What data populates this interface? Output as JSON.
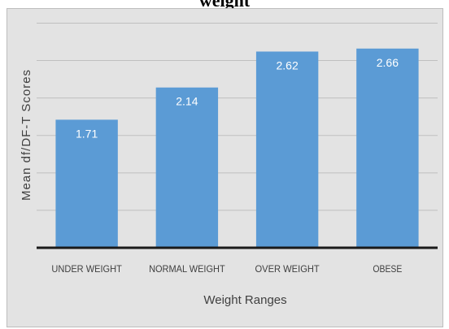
{
  "chart_data": {
    "type": "bar",
    "title": "weight",
    "xlabel": "Weight Ranges",
    "ylabel": "Mean df/DF-T Scores",
    "categories": [
      "UNDER WEIGHT",
      "NORMAL WEIGHT",
      "OVER WEIGHT",
      "OBESE"
    ],
    "values": [
      1.71,
      2.14,
      2.62,
      2.66
    ],
    "value_labels": [
      "1.71",
      "2.14",
      "2.62",
      "2.66"
    ],
    "ylim": [
      0,
      3.2
    ],
    "gridlines": [
      0.5,
      1.0,
      1.5,
      2.0,
      2.5,
      3.0
    ],
    "grid": true,
    "legend": "none",
    "colors": {
      "bar": "#5b9bd5",
      "panel": "#e3e3e3",
      "grid": "#bfbfbf",
      "axis": "#1a1a1a",
      "tick_text": "#404040",
      "value_text": "#ffffff"
    }
  }
}
